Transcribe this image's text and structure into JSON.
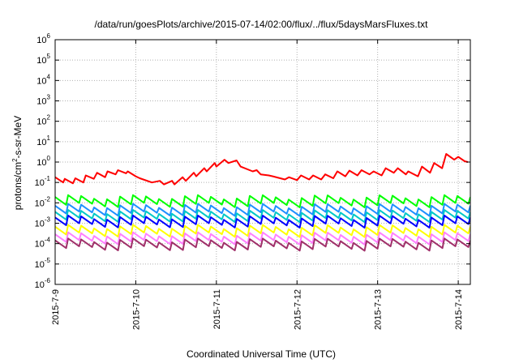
{
  "chart_data": {
    "type": "line",
    "title": "/data/run/goesPlots/archive/2015-07-14/02:00/flux/../flux/5daysMarsFluxes.txt",
    "xlabel": "Coordinated Universal Time (UTC)",
    "ylabel_parts": [
      "protons/cm",
      "2",
      "-s-sr-MeV"
    ],
    "x_range_days": [
      0,
      5.15
    ],
    "xticks": [
      {
        "day": 0,
        "label": "2015-7-9"
      },
      {
        "day": 1,
        "label": "2015-7-10"
      },
      {
        "day": 2,
        "label": "2015-7-11"
      },
      {
        "day": 3,
        "label": "2015-7-12"
      },
      {
        "day": 4,
        "label": "2015-7-13"
      },
      {
        "day": 5,
        "label": "2015-7-14"
      }
    ],
    "y_scale": "log",
    "ylim_exp": [
      -6,
      6
    ],
    "yticks": [
      {
        "base": "10",
        "exp": "-6"
      },
      {
        "base": "10",
        "exp": "-5"
      },
      {
        "base": "10",
        "exp": "-4"
      },
      {
        "base": "10",
        "exp": "-3"
      },
      {
        "base": "10",
        "exp": "-2"
      },
      {
        "base": "10",
        "exp": "-1"
      },
      {
        "base": "10",
        "exp": "0"
      },
      {
        "base": "10",
        "exp": "1"
      },
      {
        "base": "10",
        "exp": "2"
      },
      {
        "base": "10",
        "exp": "3"
      },
      {
        "base": "10",
        "exp": "4"
      },
      {
        "base": "10",
        "exp": "5"
      },
      {
        "base": "10",
        "exp": "6"
      }
    ],
    "grid": true,
    "series": [
      {
        "color": "#ff0000",
        "x": [
          0,
          0.1,
          0.12,
          0.22,
          0.25,
          0.35,
          0.38,
          0.48,
          0.52,
          0.62,
          0.65,
          0.75,
          0.78,
          0.88,
          0.9,
          1.0,
          1.05,
          1.2,
          1.3,
          1.35,
          1.45,
          1.48,
          1.58,
          1.62,
          1.72,
          1.75,
          1.85,
          1.88,
          1.98,
          2.0,
          2.1,
          2.15,
          2.25,
          2.3,
          2.45,
          2.5,
          2.55,
          2.65,
          2.7,
          2.85,
          2.9,
          3.0,
          3.05,
          3.15,
          3.2,
          3.3,
          3.35,
          3.45,
          3.5,
          3.6,
          3.65,
          3.75,
          3.8,
          3.9,
          3.95,
          4.05,
          4.1,
          4.2,
          4.25,
          4.35,
          4.38,
          4.5,
          4.55,
          4.65,
          4.7,
          4.8,
          4.85,
          4.95,
          5.0,
          5.08,
          5.12
        ],
        "y": [
          0.18,
          0.1,
          0.15,
          0.09,
          0.16,
          0.1,
          0.22,
          0.15,
          0.3,
          0.18,
          0.35,
          0.25,
          0.4,
          0.28,
          0.35,
          0.2,
          0.16,
          0.1,
          0.12,
          0.08,
          0.12,
          0.08,
          0.18,
          0.12,
          0.3,
          0.2,
          0.5,
          0.35,
          0.9,
          0.6,
          1.3,
          0.9,
          1.2,
          0.6,
          0.35,
          0.4,
          0.25,
          0.22,
          0.2,
          0.14,
          0.18,
          0.13,
          0.22,
          0.14,
          0.22,
          0.14,
          0.25,
          0.16,
          0.35,
          0.2,
          0.38,
          0.22,
          0.4,
          0.25,
          0.35,
          0.22,
          0.5,
          0.3,
          0.5,
          0.25,
          0.35,
          0.2,
          0.6,
          0.3,
          0.9,
          0.5,
          2.5,
          1.3,
          1.8,
          1.1,
          1.0
        ]
      },
      {
        "color": "#00ff00",
        "base": 0.008,
        "amp": 2.4,
        "cycles": 32
      },
      {
        "color": "#1e90ff",
        "base": 0.003,
        "amp": 2.4,
        "cycles": 32
      },
      {
        "color": "#00c8c8",
        "base": 0.0015,
        "amp": 2.4,
        "cycles": 32
      },
      {
        "color": "#0000ff",
        "base": 0.0008,
        "amp": 2.4,
        "cycles": 32
      },
      {
        "color": "#ffff00",
        "base": 0.00028,
        "amp": 2.4,
        "cycles": 32
      },
      {
        "color": "#ff80ff",
        "base": 0.00012,
        "amp": 2.4,
        "cycles": 32
      },
      {
        "color": "#a0306a",
        "base": 6e-05,
        "amp": 2.4,
        "cycles": 32
      }
    ]
  }
}
